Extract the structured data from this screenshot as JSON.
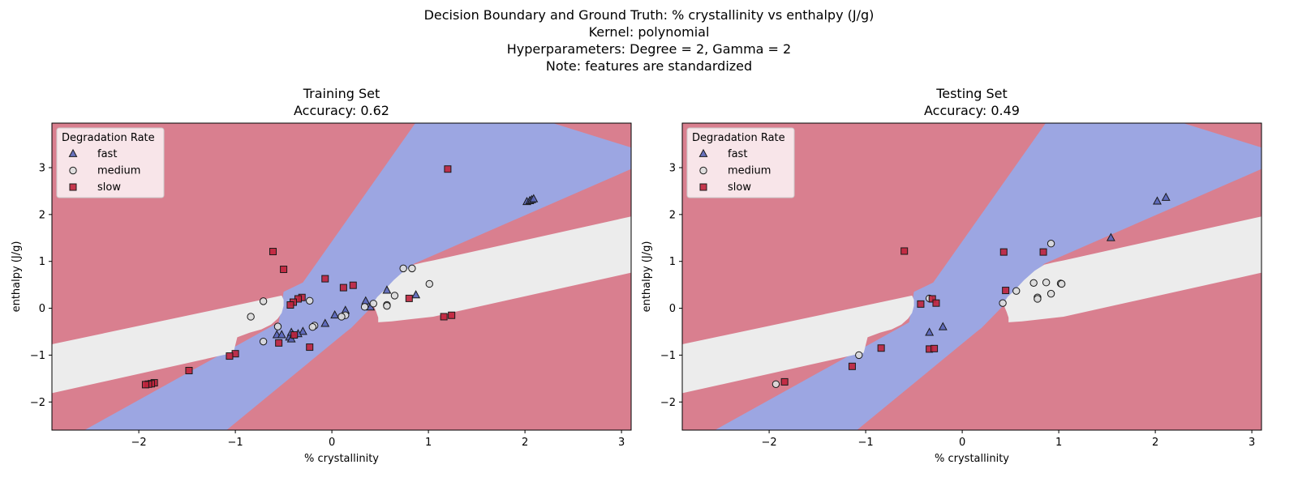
{
  "suptitle": [
    "Decision Boundary and Ground Truth: % crystallinity vs enthalpy (J/g)",
    "Kernel: polynomial",
    "Hyperparameters: Degree = 2, Gamma = 2",
    "Note: features are standardized"
  ],
  "colors": {
    "fast": "#5965b8",
    "medium": "#dddddd",
    "slow": "#c0233c",
    "region_fast": "#9ca6e2",
    "region_medium": "#ececec",
    "region_slow": "#d97f8f"
  },
  "chart_data": [
    {
      "type": "scatter",
      "title": "Training Set",
      "subtitle": "Accuracy: 0.62",
      "xlabel": "% crystallinity",
      "ylabel": "enthalpy (J/g)",
      "xlim": [
        -2.9,
        3.1
      ],
      "ylim": [
        -2.6,
        3.95
      ],
      "xticks": [
        -2,
        -1,
        0,
        1,
        2,
        3
      ],
      "yticks": [
        -2,
        -1,
        0,
        1,
        2,
        3
      ],
      "legend": {
        "title": "Degradation Rate",
        "placement": "top-left",
        "entries": [
          "fast",
          "medium",
          "slow"
        ]
      },
      "series": [
        {
          "name": "fast",
          "marker": "triangle",
          "points": [
            [
              2.02,
              2.27
            ],
            [
              2.05,
              2.29
            ],
            [
              2.07,
              2.31
            ],
            [
              2.09,
              2.33
            ],
            [
              0.57,
              0.38
            ],
            [
              0.35,
              0.15
            ],
            [
              0.4,
              0.02
            ],
            [
              0.14,
              -0.05
            ],
            [
              0.03,
              -0.15
            ],
            [
              -0.07,
              -0.33
            ],
            [
              -0.3,
              -0.5
            ],
            [
              -0.35,
              -0.55
            ],
            [
              -0.4,
              -0.58
            ],
            [
              -0.44,
              -0.62
            ],
            [
              -0.42,
              -0.66
            ],
            [
              -0.57,
              -0.57
            ],
            [
              -0.52,
              -0.57
            ],
            [
              -0.42,
              -0.52
            ],
            [
              0.87,
              0.28
            ]
          ]
        },
        {
          "name": "medium",
          "marker": "circle",
          "points": [
            [
              0.74,
              0.85
            ],
            [
              0.83,
              0.85
            ],
            [
              1.01,
              0.52
            ],
            [
              0.65,
              0.27
            ],
            [
              0.57,
              0.07
            ],
            [
              0.57,
              0.05
            ],
            [
              0.43,
              0.1
            ],
            [
              0.34,
              0.03
            ],
            [
              0.14,
              -0.15
            ],
            [
              0.1,
              -0.18
            ],
            [
              -0.23,
              0.16
            ],
            [
              -0.71,
              0.15
            ],
            [
              -0.84,
              -0.18
            ],
            [
              -0.56,
              -0.39
            ],
            [
              -0.18,
              -0.37
            ],
            [
              -0.2,
              -0.4
            ],
            [
              -0.71,
              -0.71
            ]
          ]
        },
        {
          "name": "slow",
          "marker": "square",
          "points": [
            [
              1.2,
              2.97
            ],
            [
              -0.61,
              1.21
            ],
            [
              -0.5,
              0.83
            ],
            [
              -0.07,
              0.63
            ],
            [
              0.22,
              0.49
            ],
            [
              0.12,
              0.44
            ],
            [
              -0.31,
              0.23
            ],
            [
              -0.35,
              0.2
            ],
            [
              -0.4,
              0.13
            ],
            [
              -0.43,
              0.07
            ],
            [
              0.8,
              0.21
            ],
            [
              1.16,
              -0.18
            ],
            [
              1.24,
              -0.15
            ],
            [
              -0.39,
              -0.57
            ],
            [
              -0.23,
              -0.83
            ],
            [
              -0.55,
              -0.74
            ],
            [
              -1.0,
              -0.97
            ],
            [
              -1.06,
              -1.02
            ],
            [
              -1.48,
              -1.33
            ],
            [
              -1.84,
              -1.59
            ],
            [
              -1.87,
              -1.61
            ],
            [
              -1.9,
              -1.62
            ],
            [
              -1.93,
              -1.63
            ]
          ]
        }
      ]
    },
    {
      "type": "scatter",
      "title": "Testing Set",
      "subtitle": "Accuracy: 0.49",
      "xlabel": "% crystallinity",
      "ylabel": "enthalpy (J/g)",
      "xlim": [
        -2.9,
        3.1
      ],
      "ylim": [
        -2.6,
        3.95
      ],
      "xticks": [
        -2,
        -1,
        0,
        1,
        2,
        3
      ],
      "yticks": [
        -2,
        -1,
        0,
        1,
        2,
        3
      ],
      "legend": {
        "title": "Degradation Rate",
        "placement": "top-left",
        "entries": [
          "fast",
          "medium",
          "slow"
        ]
      },
      "series": [
        {
          "name": "fast",
          "marker": "triangle",
          "points": [
            [
              2.11,
              2.36
            ],
            [
              2.02,
              2.28
            ],
            [
              1.54,
              1.5
            ],
            [
              -0.2,
              -0.4
            ],
            [
              -0.34,
              -0.52
            ]
          ]
        },
        {
          "name": "medium",
          "marker": "circle",
          "points": [
            [
              0.92,
              1.38
            ],
            [
              0.87,
              0.55
            ],
            [
              1.02,
              0.53
            ],
            [
              1.03,
              0.52
            ],
            [
              0.74,
              0.54
            ],
            [
              0.56,
              0.37
            ],
            [
              0.92,
              0.31
            ],
            [
              0.78,
              0.23
            ],
            [
              0.78,
              0.2
            ],
            [
              0.42,
              0.11
            ],
            [
              -0.34,
              0.21
            ],
            [
              -1.07,
              -1.0
            ],
            [
              -1.93,
              -1.62
            ]
          ]
        },
        {
          "name": "slow",
          "marker": "square",
          "points": [
            [
              -0.6,
              1.22
            ],
            [
              0.43,
              1.2
            ],
            [
              0.84,
              1.2
            ],
            [
              0.45,
              0.38
            ],
            [
              -0.31,
              0.2
            ],
            [
              -0.27,
              0.11
            ],
            [
              -0.43,
              0.09
            ],
            [
              -0.34,
              -0.87
            ],
            [
              -0.29,
              -0.86
            ],
            [
              -0.84,
              -0.85
            ],
            [
              -1.14,
              -1.24
            ],
            [
              -1.84,
              -1.57
            ]
          ]
        }
      ]
    }
  ]
}
